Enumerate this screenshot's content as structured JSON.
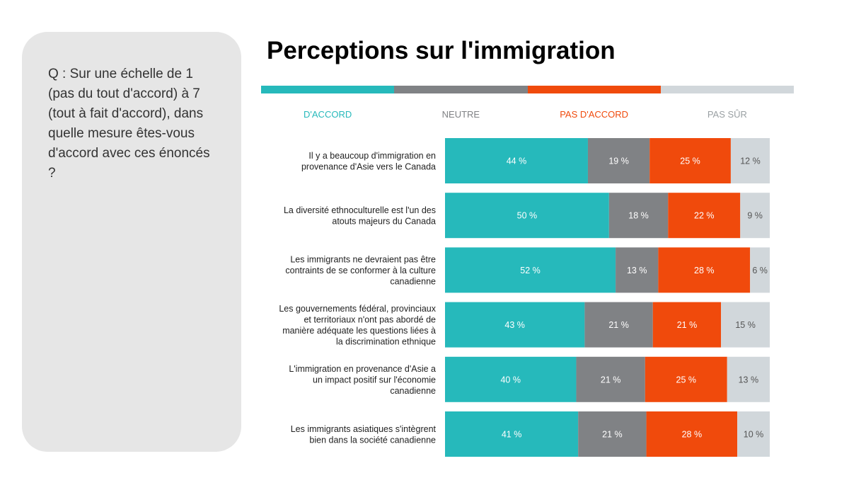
{
  "question": "Q : Sur une échelle de 1 (pas du tout d'accord) à 7 (tout à fait d'accord), dans quelle mesure êtes-vous d'accord avec ces énoncés ?",
  "title": "Perceptions sur l'immigration",
  "colors": {
    "accord": "#26b9bb",
    "neutre": "#808285",
    "pas_accord": "#f04a0c",
    "pas_sur": "#d1d7db"
  },
  "legend": [
    {
      "label": "D'ACCORD",
      "color": "#26b9bb"
    },
    {
      "label": "NEUTRE",
      "color": "#808285"
    },
    {
      "label": "PAS D'ACCORD",
      "color": "#f04a0c"
    },
    {
      "label": "PAS SÛR",
      "color": "#9aa0a3"
    }
  ],
  "chart_data": {
    "type": "bar",
    "orientation": "horizontal",
    "stacked": true,
    "title": "Perceptions sur l'immigration",
    "categories": [
      "Il y a beaucoup d'immigration en provenance d'Asie vers le Canada",
      "La diversité ethnoculturelle est l'un des atouts majeurs du Canada",
      "Les immigrants ne devraient pas être contraints de se conformer à la culture canadienne",
      "Les gouvernements fédéral, provinciaux et territoriaux n'ont pas abordé de manière adéquate les questions liées à la discrimination ethnique",
      "L'immigration en provenance d'Asie a un impact positif sur l'économie canadienne",
      "Les immigrants asiatiques s'intègrent bien dans la société canadienne"
    ],
    "category_lines": [
      [
        "Il y a beaucoup d'immigration en",
        "provenance d'Asie vers le Canada"
      ],
      [
        "La diversité ethnoculturelle est l'un des",
        "atouts majeurs du Canada"
      ],
      [
        "Les immigrants ne devraient pas être",
        "contraints de se conformer à la culture",
        "canadienne"
      ],
      [
        "Les gouvernements fédéral, provinciaux",
        "et territoriaux n'ont pas abordé de",
        "manière adéquate les questions liées à",
        "la discrimination ethnique"
      ],
      [
        "L'immigration en provenance d'Asie a",
        "un impact positif sur l'économie",
        "canadienne"
      ],
      [
        "Les immigrants asiatiques s'intègrent",
        "bien dans la société canadienne"
      ]
    ],
    "series": [
      {
        "name": "D'ACCORD",
        "values": [
          44,
          50,
          52,
          43,
          40,
          41
        ]
      },
      {
        "name": "NEUTRE",
        "values": [
          19,
          18,
          13,
          21,
          21,
          21
        ]
      },
      {
        "name": "PAS D'ACCORD",
        "values": [
          25,
          22,
          28,
          21,
          25,
          28
        ]
      },
      {
        "name": "PAS SÛR",
        "values": [
          12,
          9,
          6,
          15,
          13,
          10
        ]
      }
    ],
    "value_suffix": " %",
    "xlim": [
      0,
      100
    ],
    "grid": false,
    "legend_position": "top"
  }
}
